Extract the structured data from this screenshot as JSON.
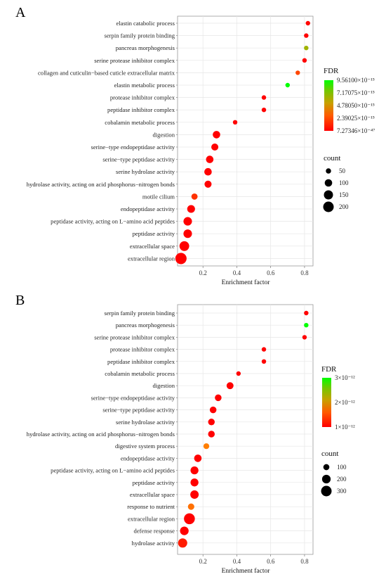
{
  "chart_data": [
    {
      "panel": "A",
      "type": "scatter",
      "xlabel": "Enrichment factor",
      "xlim": [
        0.05,
        0.85
      ],
      "xticks": [
        0.2,
        0.4,
        0.6,
        0.8
      ],
      "xtick_labels": [
        "0.2",
        "0.4",
        "0.6",
        "0.8"
      ],
      "grid": true,
      "categories": [
        "elastin catabolic process",
        "serpin family protein binding",
        "pancreas morphogenesis",
        "serine protease inhibitor complex",
        "collagen and cuticulin−based cuticle extracellular matrix",
        "elastin metabolic process",
        "protease inhibitor complex",
        "peptidase inhibitor complex",
        "cobalamin metabolic process",
        "digestion",
        "serine−type endopeptidase activity",
        "serine−type peptidase activity",
        "serine hydrolase activity",
        "hydrolase activity, acting on acid phosphorus−nitrogen bonds",
        "motile cilium",
        "endopeptidase activity",
        "peptidase activity, acting on L−amino acid peptides",
        "peptidase activity",
        "extracellular space",
        "extracellular region"
      ],
      "points": [
        {
          "x": 0.82,
          "count": 10,
          "fdr": 0.02
        },
        {
          "x": 0.81,
          "count": 25,
          "fdr": 0.0
        },
        {
          "x": 0.81,
          "count": 10,
          "fdr": 0.6
        },
        {
          "x": 0.8,
          "count": 25,
          "fdr": 0.0
        },
        {
          "x": 0.76,
          "count": 12,
          "fdr": 0.25
        },
        {
          "x": 0.7,
          "count": 15,
          "fdr": 1.0
        },
        {
          "x": 0.56,
          "count": 20,
          "fdr": 0.0
        },
        {
          "x": 0.56,
          "count": 20,
          "fdr": 0.0
        },
        {
          "x": 0.39,
          "count": 25,
          "fdr": 0.0
        },
        {
          "x": 0.28,
          "count": 100,
          "fdr": 0.0
        },
        {
          "x": 0.27,
          "count": 90,
          "fdr": 0.0
        },
        {
          "x": 0.24,
          "count": 100,
          "fdr": 0.0
        },
        {
          "x": 0.23,
          "count": 100,
          "fdr": 0.0
        },
        {
          "x": 0.23,
          "count": 90,
          "fdr": 0.0
        },
        {
          "x": 0.15,
          "count": 70,
          "fdr": 0.18
        },
        {
          "x": 0.13,
          "count": 110,
          "fdr": 0.0
        },
        {
          "x": 0.11,
          "count": 130,
          "fdr": 0.0
        },
        {
          "x": 0.11,
          "count": 130,
          "fdr": 0.0
        },
        {
          "x": 0.09,
          "count": 170,
          "fdr": 0.0
        },
        {
          "x": 0.07,
          "count": 230,
          "fdr": 0.0
        }
      ],
      "color_legend": {
        "title": "FDR",
        "labels": [
          "9.56100×10⁻¹⁵",
          "7.17075×10⁻¹⁵",
          "4.78050×10⁻¹⁵",
          "2.39025×10⁻¹⁵",
          "7.27346×10⁻⁴⁷"
        ]
      },
      "size_legend": {
        "title": "count",
        "values": [
          50,
          100,
          150,
          200
        ],
        "labels": [
          "50",
          "100",
          "150",
          "200"
        ]
      },
      "colors": {
        "low": "#ff0000",
        "mid": "#9c9c00",
        "high": "#00ff00"
      }
    },
    {
      "panel": "B",
      "type": "scatter",
      "xlabel": "Enrichment factor",
      "xlim": [
        0.05,
        0.85
      ],
      "xticks": [
        0.2,
        0.4,
        0.6,
        0.8
      ],
      "xtick_labels": [
        "0.2",
        "0.4",
        "0.6",
        "0.8"
      ],
      "grid": true,
      "categories": [
        "serpin family protein binding",
        "pancreas morphogenesis",
        "serine protease inhibitor complex",
        "protease inhibitor complex",
        "peptidase inhibitor complex",
        "cobalamin metabolic process",
        "digestion",
        "serine−type endopeptidase activity",
        "serine−type peptidase activity",
        "serine hydrolase activity",
        "hydrolase activity, acting on acid phosphorus−nitrogen bonds",
        "digestive system process",
        "endopeptidase activity",
        "peptidase activity, acting on L−amino acid peptides",
        "peptidase activity",
        "extracellular space",
        "response to nutrient",
        "extracellular region",
        "defense response",
        "hydrolase activity"
      ],
      "points": [
        {
          "x": 0.81,
          "count": 25,
          "fdr": 0.0
        },
        {
          "x": 0.81,
          "count": 20,
          "fdr": 1.0
        },
        {
          "x": 0.8,
          "count": 25,
          "fdr": 0.0
        },
        {
          "x": 0.56,
          "count": 30,
          "fdr": 0.0
        },
        {
          "x": 0.56,
          "count": 30,
          "fdr": 0.0
        },
        {
          "x": 0.41,
          "count": 40,
          "fdr": 0.0
        },
        {
          "x": 0.36,
          "count": 130,
          "fdr": 0.0
        },
        {
          "x": 0.29,
          "count": 120,
          "fdr": 0.0
        },
        {
          "x": 0.26,
          "count": 120,
          "fdr": 0.0
        },
        {
          "x": 0.25,
          "count": 120,
          "fdr": 0.0
        },
        {
          "x": 0.25,
          "count": 120,
          "fdr": 0.0
        },
        {
          "x": 0.22,
          "count": 90,
          "fdr": 0.45
        },
        {
          "x": 0.17,
          "count": 150,
          "fdr": 0.0
        },
        {
          "x": 0.15,
          "count": 170,
          "fdr": 0.0
        },
        {
          "x": 0.15,
          "count": 170,
          "fdr": 0.0
        },
        {
          "x": 0.15,
          "count": 190,
          "fdr": 0.0
        },
        {
          "x": 0.13,
          "count": 110,
          "fdr": 0.4
        },
        {
          "x": 0.12,
          "count": 320,
          "fdr": 0.0
        },
        {
          "x": 0.09,
          "count": 200,
          "fdr": 0.0
        },
        {
          "x": 0.08,
          "count": 230,
          "fdr": 0.1
        }
      ],
      "color_legend": {
        "title": "FDR",
        "labels": [
          "3×10⁻¹²",
          "2×10⁻¹²",
          "1×10⁻¹²"
        ]
      },
      "size_legend": {
        "title": "count",
        "values": [
          100,
          200,
          300
        ],
        "labels": [
          "100",
          "200",
          "300"
        ]
      },
      "colors": {
        "low": "#ff0000",
        "mid": "#9c9c00",
        "high": "#00ff00"
      }
    }
  ]
}
